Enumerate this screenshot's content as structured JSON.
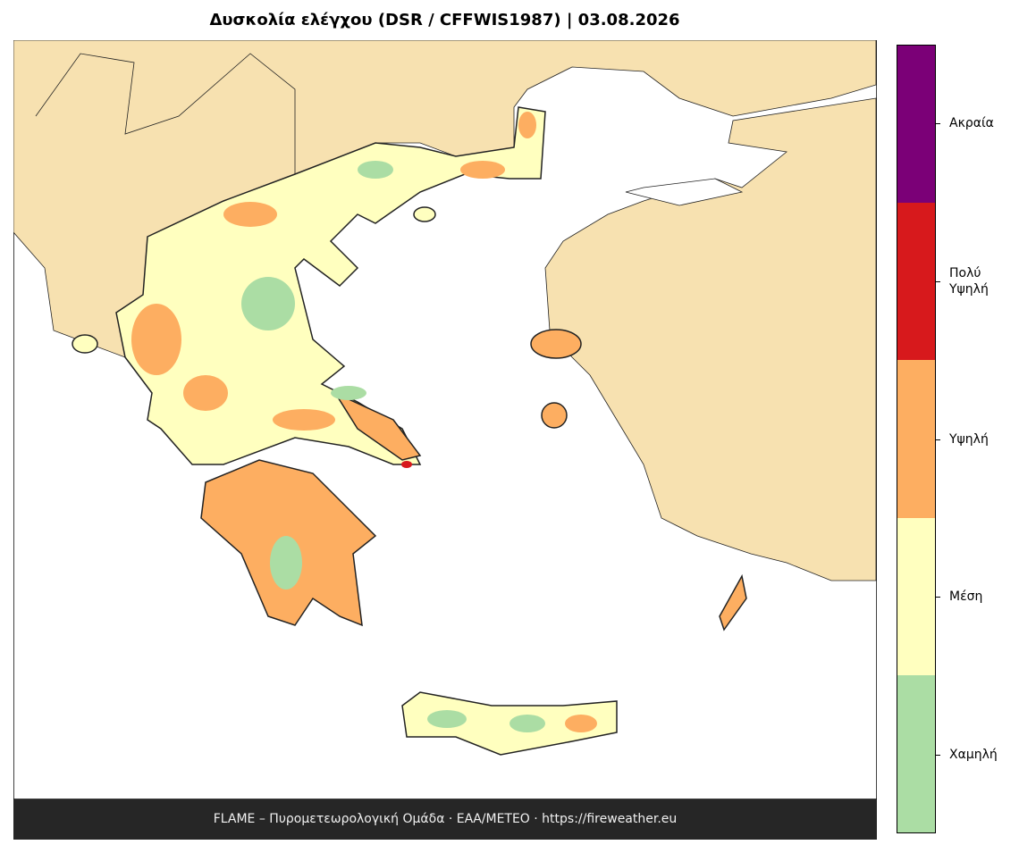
{
  "title": "Δυσκολία ελέγχου (DSR / CFFWIS1987)  |  03.08.2026",
  "legend": {
    "classes": [
      {
        "label": "Ακραία",
        "color": "#7b0077"
      },
      {
        "label": "Πολύ\nΥψηλή",
        "color": "#d7191c"
      },
      {
        "label": "Υψηλή",
        "color": "#fdae61"
      },
      {
        "label": "Μέση",
        "color": "#ffffbf"
      },
      {
        "label": "Χαμηλή",
        "color": "#abdda4"
      }
    ]
  },
  "footer": "FLAME – Πυρομετεωρολογική Ομάδα · ΕΑΑ/METEO · https://fireweather.eu"
}
